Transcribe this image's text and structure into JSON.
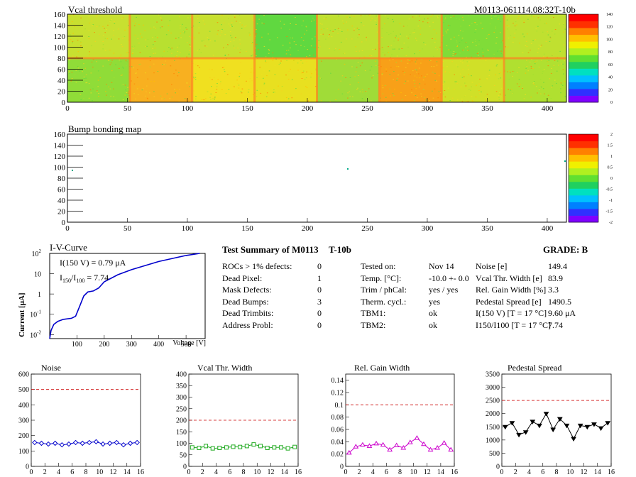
{
  "module_label": "M0113-061114.08:32T-10b",
  "vcal_map": {
    "title": "Vcal threshold",
    "x_ticks": [
      "0",
      "50",
      "100",
      "150",
      "200",
      "250",
      "300",
      "350",
      "400"
    ],
    "y_ticks": [
      "0",
      "20",
      "40",
      "60",
      "80",
      "100",
      "120",
      "140",
      "160"
    ],
    "z_ticks": [
      "0",
      "20",
      "40",
      "60",
      "80",
      "100",
      "120",
      "140"
    ]
  },
  "bump_map": {
    "title": "Bump bonding map",
    "x_ticks": [
      "0",
      "50",
      "100",
      "150",
      "200",
      "250",
      "300",
      "350",
      "400"
    ],
    "y_ticks": [
      "0",
      "20",
      "40",
      "60",
      "80",
      "100",
      "120",
      "140",
      "160"
    ],
    "z_ticks": [
      "-2",
      "-1.5",
      "-1",
      "-0.5",
      "0",
      "0.5",
      "1",
      "1.5",
      "2"
    ]
  },
  "iv_curve": {
    "title": "I-V-Curve",
    "ylabel_main": "Current [",
    "ylabel_mu": "μ",
    "ylabel_end": "A]",
    "xlabel": "Voltage [V]",
    "i150_text": "I(150 V) = 0.79 μA",
    "ratio_I": "I",
    "ratio_sub1": "150",
    "ratio_slash": "/I",
    "ratio_sub2": "100",
    "ratio_value": " =  7.74",
    "x_ticks": [
      "100",
      "200",
      "300",
      "400",
      "500"
    ],
    "y_ticks": [
      {
        "base": "10",
        "exp": "-2"
      },
      {
        "base": "10",
        "exp": "-1"
      },
      {
        "base": "1",
        "exp": ""
      },
      {
        "base": "10",
        "exp": ""
      },
      {
        "base": "10",
        "exp": "2"
      }
    ]
  },
  "summary": {
    "title": "Test Summary of M0113",
    "subtitle": "T-10b",
    "grade": "GRADE:  B",
    "left_rows": [
      {
        "label": "ROCs > 1% defects:",
        "value": "0"
      },
      {
        "label": "Dead Pixel:",
        "value": "1"
      },
      {
        "label": "Mask Defects:",
        "value": "0"
      },
      {
        "label": "Dead Bumps:",
        "value": "3"
      },
      {
        "label": "Dead Trimbits:",
        "value": "0"
      },
      {
        "label": "Address Probl:",
        "value": "0"
      }
    ],
    "mid_rows": [
      {
        "label": "Tested on:",
        "value": "Nov 14"
      },
      {
        "label": "Temp. [°C]:",
        "value": "-10.0 +- 0.0"
      },
      {
        "label": "Trim / phCal:",
        "value": "yes / yes"
      },
      {
        "label": "Therm. cycl.:",
        "value": "yes"
      },
      {
        "label": "TBM1:",
        "value": "ok"
      },
      {
        "label": "TBM2:",
        "value": "ok"
      }
    ],
    "right_rows": [
      {
        "label": "Noise [e]",
        "value": "149.4"
      },
      {
        "label": "Vcal Thr. Width [e]",
        "value": "83.9"
      },
      {
        "label": "Rel. Gain Width [%]",
        "value": "3.3"
      },
      {
        "label": "Pedestal Spread [e]",
        "value": "1490.5"
      },
      {
        "label": "I(150 V) [T = 17 °C]",
        "value": "9.60 μA"
      },
      {
        "label": "I150/I100  [T = 17 °C]",
        "value": "7.74"
      }
    ]
  },
  "chart_data": [
    {
      "type": "scatter",
      "title": "Noise",
      "color": "#0000cc",
      "marker": "diamond",
      "x": [
        0,
        1,
        2,
        3,
        4,
        5,
        6,
        7,
        8,
        9,
        10,
        11,
        12,
        13,
        14,
        15
      ],
      "values": [
        155,
        150,
        145,
        150,
        140,
        145,
        155,
        150,
        155,
        160,
        145,
        150,
        155,
        140,
        150,
        155
      ],
      "ylim": [
        0,
        600
      ],
      "xlim": [
        0,
        16
      ],
      "threshold": 500,
      "y_ticks": [
        "0",
        "100",
        "200",
        "300",
        "400",
        "500",
        "600"
      ],
      "x_ticks": [
        "0",
        "2",
        "4",
        "6",
        "8",
        "10",
        "12",
        "14",
        "16"
      ]
    },
    {
      "type": "scatter",
      "title": "Vcal Thr. Width",
      "color": "#22aa22",
      "marker": "square",
      "x": [
        0,
        1,
        2,
        3,
        4,
        5,
        6,
        7,
        8,
        9,
        10,
        11,
        12,
        13,
        14,
        15
      ],
      "values": [
        82,
        80,
        88,
        78,
        80,
        82,
        85,
        84,
        88,
        95,
        88,
        80,
        82,
        82,
        78,
        84
      ],
      "ylim": [
        0,
        400
      ],
      "xlim": [
        0,
        16
      ],
      "threshold": 200,
      "y_ticks": [
        "0",
        "50",
        "100",
        "150",
        "200",
        "250",
        "300",
        "350",
        "400"
      ],
      "x_ticks": [
        "0",
        "2",
        "4",
        "6",
        "8",
        "10",
        "12",
        "14",
        "16"
      ]
    },
    {
      "type": "line",
      "title": "Rel. Gain Width",
      "color": "#cc00cc",
      "marker": "triangle",
      "x": [
        0,
        1,
        2,
        3,
        4,
        5,
        6,
        7,
        8,
        9,
        10,
        11,
        12,
        13,
        14,
        15
      ],
      "values": [
        0.022,
        0.032,
        0.035,
        0.033,
        0.037,
        0.035,
        0.027,
        0.034,
        0.03,
        0.039,
        0.046,
        0.036,
        0.027,
        0.03,
        0.038,
        0.027
      ],
      "ylim": [
        0,
        0.15
      ],
      "xlim": [
        0,
        16
      ],
      "threshold": 0.1,
      "y_ticks": [
        "0",
        "0.02",
        "0.04",
        "0.06",
        "0.08",
        "0.1",
        "0.12",
        "0.14"
      ],
      "x_ticks": [
        "0",
        "2",
        "4",
        "6",
        "8",
        "10",
        "12",
        "14",
        "16"
      ]
    },
    {
      "type": "line",
      "title": "Pedestal Spread",
      "color": "#000000",
      "marker": "triangle-down",
      "x": [
        0,
        1,
        2,
        3,
        4,
        5,
        6,
        7,
        8,
        9,
        10,
        11,
        12,
        13,
        14,
        15
      ],
      "values": [
        1500,
        1650,
        1200,
        1300,
        1700,
        1550,
        2000,
        1400,
        1800,
        1550,
        1050,
        1550,
        1500,
        1600,
        1450,
        1650
      ],
      "ylim": [
        0,
        3500
      ],
      "xlim": [
        0,
        16
      ],
      "threshold": 2500,
      "y_ticks": [
        "0",
        "500",
        "1000",
        "1500",
        "2000",
        "2500",
        "3000",
        "3500"
      ],
      "x_ticks": [
        "0",
        "2",
        "4",
        "6",
        "8",
        "10",
        "12",
        "14",
        "16"
      ]
    }
  ]
}
